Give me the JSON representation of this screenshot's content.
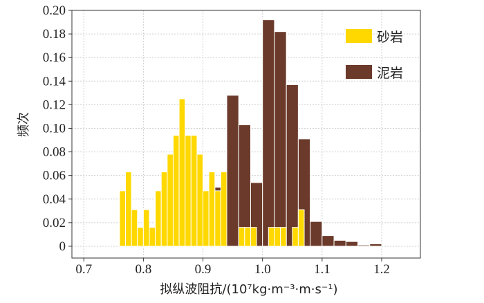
{
  "chart_data": {
    "type": "bar",
    "subtype": "overlapping-histogram",
    "xlabel": "拟纵波阻抗/(10⁷kg·m⁻³·m·s⁻¹)",
    "ylabel": "频次",
    "xlim": [
      0.68,
      1.265
    ],
    "ylim": [
      -0.01,
      0.2
    ],
    "xticks": [
      "0.7",
      "0.8",
      "0.9",
      "1.0",
      "1.1",
      "1.2"
    ],
    "yticks": [
      "0",
      "0.02",
      "0.04",
      "0.06",
      "0.08",
      "0.10",
      "0.12",
      "0.14",
      "0.16",
      "0.18",
      "0.20"
    ],
    "grid": true,
    "legend_position": "top-right",
    "bin_width": 0.02,
    "series": [
      {
        "name": "泥岩",
        "color": "#6B3A2A",
        "bins": [
          {
            "x0": 0.92,
            "value": 0.05
          },
          {
            "x0": 0.94,
            "value": 0.128
          },
          {
            "x0": 0.96,
            "value": 0.103
          },
          {
            "x0": 0.98,
            "value": 0.054
          },
          {
            "x0": 1.0,
            "value": 0.192
          },
          {
            "x0": 1.02,
            "value": 0.182
          },
          {
            "x0": 1.04,
            "value": 0.137
          },
          {
            "x0": 1.06,
            "value": 0.091
          },
          {
            "x0": 1.08,
            "value": 0.021
          },
          {
            "x0": 1.1,
            "value": 0.009
          },
          {
            "x0": 1.12,
            "value": 0.005
          },
          {
            "x0": 1.14,
            "value": 0.004
          },
          {
            "x0": 1.16,
            "value": 0.001
          },
          {
            "x0": 1.18,
            "value": 0.002
          }
        ]
      },
      {
        "name": "砂岩",
        "color": "#FFD800",
        "bins": [
          {
            "x0": 0.76,
            "value": 0.047
          },
          {
            "x0": 0.77,
            "value": 0.063
          },
          {
            "x0": 0.78,
            "value": 0.031
          },
          {
            "x0": 0.79,
            "value": 0.016
          },
          {
            "x0": 0.8,
            "value": 0.031
          },
          {
            "x0": 0.81,
            "value": 0.016
          },
          {
            "x0": 0.82,
            "value": 0.047
          },
          {
            "x0": 0.83,
            "value": 0.063
          },
          {
            "x0": 0.84,
            "value": 0.078
          },
          {
            "x0": 0.85,
            "value": 0.094
          },
          {
            "x0": 0.86,
            "value": 0.125
          },
          {
            "x0": 0.87,
            "value": 0.094
          },
          {
            "x0": 0.88,
            "value": 0.094
          },
          {
            "x0": 0.89,
            "value": 0.078
          },
          {
            "x0": 0.9,
            "value": 0.047
          },
          {
            "x0": 0.91,
            "value": 0.063
          },
          {
            "x0": 0.92,
            "value": 0.047
          },
          {
            "x0": 0.93,
            "value": 0.063
          },
          {
            "x0": 0.95,
            "value": 0.0
          },
          {
            "x0": 0.96,
            "value": 0.016
          },
          {
            "x0": 0.97,
            "value": 0.016
          },
          {
            "x0": 0.98,
            "value": 0.016
          },
          {
            "x0": 1.01,
            "value": 0.016
          },
          {
            "x0": 1.02,
            "value": 0.016
          },
          {
            "x0": 1.03,
            "value": 0.016
          },
          {
            "x0": 1.05,
            "value": 0.016
          },
          {
            "x0": 1.06,
            "value": 0.031
          }
        ]
      }
    ]
  }
}
